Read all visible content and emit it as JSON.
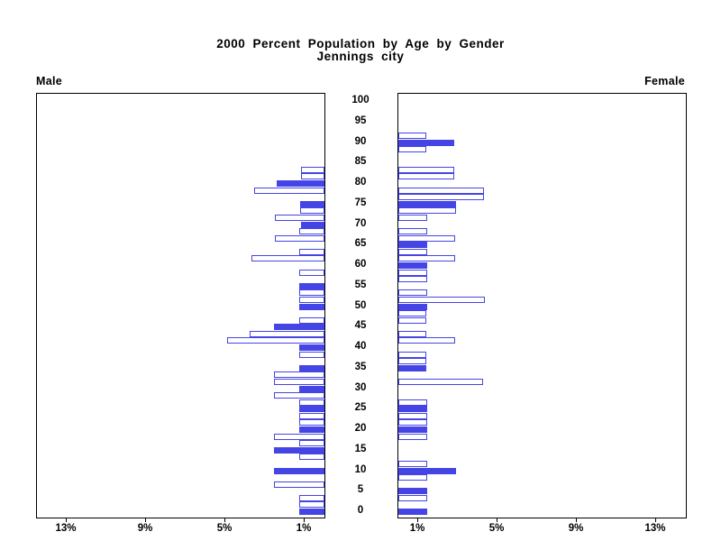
{
  "title": "2000 Percent Population by Age by Gender",
  "subtitle": "Jennings city",
  "panels": {
    "left_label": "Male",
    "right_label": "Female"
  },
  "colors": {
    "bar_blue": "#4545e5",
    "bar_white_fill": "#ffffff",
    "frame": "#000000",
    "text": "#000000",
    "background": "#ffffff"
  },
  "chart_data": {
    "type": "bar",
    "orientation": "horizontal-pyramid",
    "title": "2000 Percent Population by Age by Gender",
    "subtitle": "Jennings city",
    "left_panel": "Male",
    "right_panel": "Female",
    "age_axis": {
      "min": 0,
      "max": 100,
      "label_step": 5,
      "tick_labels": [
        "0",
        "5",
        "10",
        "15",
        "20",
        "25",
        "30",
        "35",
        "40",
        "45",
        "50",
        "55",
        "60",
        "65",
        "70",
        "75",
        "80",
        "85",
        "90",
        "95",
        "100"
      ]
    },
    "pct_axis": {
      "tick_values": [
        1,
        5,
        9,
        13
      ],
      "left_tick_labels": [
        "13%",
        "9%",
        "5%",
        "1%"
      ],
      "right_tick_labels": [
        "1%",
        "5%",
        "9%",
        "13%"
      ],
      "max_pct": 14.5
    },
    "legend_note": "bars at 5-year labels are solid blue; intermediate bars are white with blue outline",
    "columns": [
      "age",
      "male_pct",
      "female_pct"
    ],
    "slots": [
      [
        0,
        1.29,
        1.44
      ],
      [
        1.67,
        1.29,
        0
      ],
      [
        3.33,
        1.29,
        1.44
      ],
      [
        5,
        0,
        1.44
      ],
      [
        6.67,
        2.55,
        0
      ],
      [
        8.33,
        0,
        1.44
      ],
      [
        10,
        2.55,
        2.9
      ],
      [
        11.67,
        0,
        1.44
      ],
      [
        13.33,
        1.29,
        0
      ],
      [
        15,
        2.55,
        0
      ],
      [
        16.67,
        1.29,
        0
      ],
      [
        18.33,
        2.55,
        1.44
      ],
      [
        20,
        1.29,
        1.44
      ],
      [
        21.67,
        1.29,
        1.44
      ],
      [
        23.33,
        1.29,
        1.44
      ],
      [
        25,
        1.29,
        1.44
      ],
      [
        26.67,
        1.29,
        1.44
      ],
      [
        28.33,
        2.53,
        0
      ],
      [
        30,
        1.29,
        0
      ],
      [
        31.67,
        2.53,
        4.27
      ],
      [
        33.33,
        2.53,
        0
      ],
      [
        35,
        1.29,
        1.4
      ],
      [
        36.67,
        0,
        1.4
      ],
      [
        38.33,
        1.29,
        1.4
      ],
      [
        40,
        1.29,
        0
      ],
      [
        41.67,
        4.92,
        2.88
      ],
      [
        43.33,
        3.76,
        1.4
      ],
      [
        45,
        2.53,
        0
      ],
      [
        46.67,
        1.29,
        1.4
      ],
      [
        48.33,
        0,
        1.4
      ],
      [
        50,
        1.29,
        1.44
      ],
      [
        51.67,
        1.29,
        4.35
      ],
      [
        53.33,
        1.29,
        1.44
      ],
      [
        55,
        1.29,
        0
      ],
      [
        56.67,
        0,
        1.44
      ],
      [
        58.33,
        1.29,
        1.44
      ],
      [
        60,
        0,
        1.44
      ],
      [
        61.67,
        3.7,
        2.88
      ],
      [
        63.33,
        1.29,
        1.44
      ],
      [
        65,
        0,
        1.44
      ],
      [
        66.67,
        2.5,
        2.88
      ],
      [
        68.33,
        1.29,
        1.44
      ],
      [
        70,
        1.2,
        0
      ],
      [
        71.67,
        2.5,
        1.44
      ],
      [
        73.33,
        1.24,
        2.9
      ],
      [
        75,
        1.24,
        2.9
      ],
      [
        76.67,
        0,
        4.3
      ],
      [
        78.33,
        3.55,
        4.3
      ],
      [
        80,
        2.4,
        0
      ],
      [
        81.67,
        1.2,
        2.8
      ],
      [
        83.33,
        1.2,
        2.8
      ],
      [
        85,
        0,
        0
      ],
      [
        86.67,
        0,
        0
      ],
      [
        88.33,
        0,
        1.4
      ],
      [
        90,
        0,
        2.8
      ],
      [
        91.67,
        0,
        1.4
      ],
      [
        93.33,
        0,
        0
      ],
      [
        95,
        0,
        0
      ],
      [
        96.67,
        0,
        0
      ],
      [
        98.33,
        0,
        0
      ],
      [
        100,
        0,
        0
      ]
    ]
  }
}
